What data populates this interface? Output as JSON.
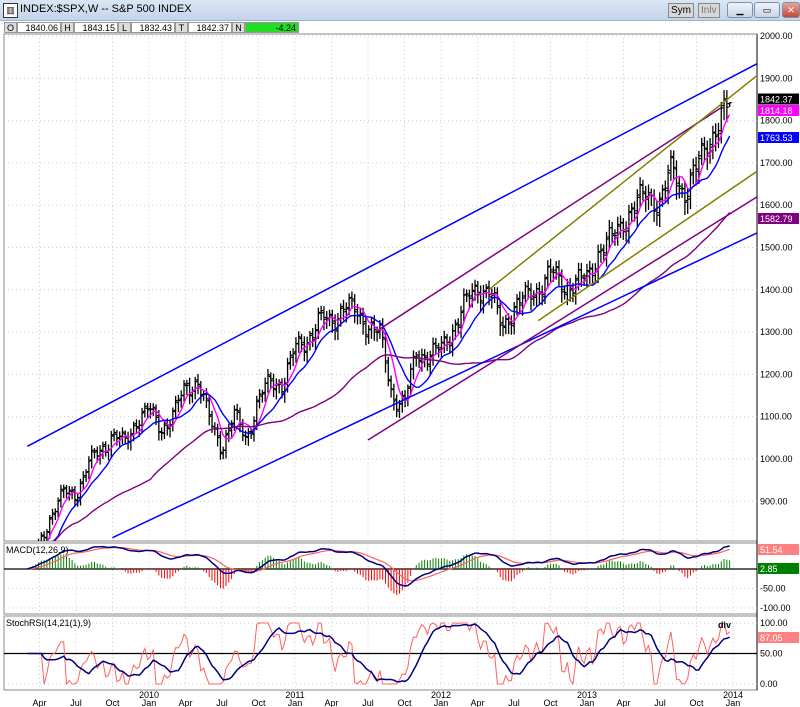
{
  "window": {
    "title": "INDEX:$SPX,W -- S&P 500 INDEX",
    "buttons": {
      "sym": "Sym",
      "inlv": "Inlv",
      "minimize": "minimize-icon",
      "maximize": "maximize-icon",
      "close": "close-icon"
    }
  },
  "ohlc": {
    "o_label": "O",
    "o": "1840.06",
    "h_label": "H",
    "h": "1843.15",
    "l_label": "L",
    "l": "1832.43",
    "t_label": "T",
    "t": "1842.37",
    "n_label": "N",
    "n": "-4.24"
  },
  "chart_data": {
    "type": "ohlc",
    "interval": "weekly",
    "price_axis": {
      "ticks": [
        "2000.00",
        "1900.00",
        "1800.00",
        "1700.00",
        "1600.00",
        "1500.00",
        "1400.00",
        "1300.00",
        "1200.00",
        "1100.00",
        "1000.00",
        "900.00"
      ],
      "range": [
        830,
        2040
      ]
    },
    "x_ticks": [
      {
        "m": "Apr",
        "d": "2009-04"
      },
      {
        "m": "Jul",
        "d": "2009-07"
      },
      {
        "m": "Oct",
        "d": "2009-10"
      },
      {
        "m": "Jan",
        "y": "2010",
        "d": "2010-01"
      },
      {
        "m": "Apr",
        "d": "2010-04"
      },
      {
        "m": "Jul",
        "d": "2010-07"
      },
      {
        "m": "Oct",
        "d": "2010-10"
      },
      {
        "m": "Jan",
        "y": "2011",
        "d": "2011-01"
      },
      {
        "m": "Apr",
        "d": "2011-04"
      },
      {
        "m": "Jul",
        "d": "2011-07"
      },
      {
        "m": "Oct",
        "d": "2011-10"
      },
      {
        "m": "Jan",
        "y": "2012",
        "d": "2012-01"
      },
      {
        "m": "Apr",
        "d": "2012-04"
      },
      {
        "m": "Jul",
        "d": "2012-07"
      },
      {
        "m": "Oct",
        "d": "2012-10"
      },
      {
        "m": "Jan",
        "y": "2013",
        "d": "2013-01"
      },
      {
        "m": "Apr",
        "d": "2013-04"
      },
      {
        "m": "Jul",
        "d": "2013-07"
      },
      {
        "m": "Oct",
        "d": "2013-10"
      },
      {
        "m": "Jan",
        "y": "2014",
        "d": "2014-01"
      }
    ],
    "monthly_close": [
      [
        "2009-02",
        735
      ],
      [
        "2009-03",
        798
      ],
      [
        "2009-04",
        873
      ],
      [
        "2009-05",
        919
      ],
      [
        "2009-06",
        919
      ],
      [
        "2009-07",
        987
      ],
      [
        "2009-08",
        1021
      ],
      [
        "2009-09",
        1057
      ],
      [
        "2009-10",
        1036
      ],
      [
        "2009-11",
        1096
      ],
      [
        "2009-12",
        1115
      ],
      [
        "2010-01",
        1074
      ],
      [
        "2010-02",
        1104
      ],
      [
        "2010-03",
        1169
      ],
      [
        "2010-04",
        1187
      ],
      [
        "2010-05",
        1089
      ],
      [
        "2010-06",
        1031
      ],
      [
        "2010-07",
        1102
      ],
      [
        "2010-08",
        1049
      ],
      [
        "2010-09",
        1141
      ],
      [
        "2010-10",
        1183
      ],
      [
        "2010-11",
        1181
      ],
      [
        "2010-12",
        1258
      ],
      [
        "2011-01",
        1286
      ],
      [
        "2011-02",
        1327
      ],
      [
        "2011-03",
        1326
      ],
      [
        "2011-04",
        1364
      ],
      [
        "2011-05",
        1345
      ],
      [
        "2011-06",
        1321
      ],
      [
        "2011-07",
        1292
      ],
      [
        "2011-08",
        1150
      ],
      [
        "2011-09",
        1131
      ],
      [
        "2011-10",
        1253
      ],
      [
        "2011-11",
        1247
      ],
      [
        "2011-12",
        1258
      ],
      [
        "2012-01",
        1312
      ],
      [
        "2012-02",
        1366
      ],
      [
        "2012-03",
        1408
      ],
      [
        "2012-04",
        1398
      ],
      [
        "2012-05",
        1310
      ],
      [
        "2012-06",
        1362
      ],
      [
        "2012-07",
        1379
      ],
      [
        "2012-08",
        1407
      ],
      [
        "2012-09",
        1441
      ],
      [
        "2012-10",
        1412
      ],
      [
        "2012-11",
        1416
      ],
      [
        "2012-12",
        1426
      ],
      [
        "2013-01",
        1498
      ],
      [
        "2013-02",
        1515
      ],
      [
        "2013-03",
        1569
      ],
      [
        "2013-04",
        1598
      ],
      [
        "2013-05",
        1631
      ],
      [
        "2013-06",
        1606
      ],
      [
        "2013-07",
        1686
      ],
      [
        "2013-08",
        1633
      ],
      [
        "2013-09",
        1682
      ],
      [
        "2013-10",
        1757
      ],
      [
        "2013-11",
        1806
      ],
      [
        "2013-12",
        1842.37
      ]
    ],
    "last_bar": {
      "open": 1840.06,
      "high": 1843.15,
      "low": 1832.43,
      "close": 1842.37
    },
    "moving_averages": [
      {
        "color": "#ff00ff",
        "last": "1814.18"
      },
      {
        "color": "#0000ff",
        "last": "1763.53"
      },
      {
        "color": "#800080",
        "last": "1582.79"
      }
    ],
    "last_price_label": "1842.37",
    "trendlines": [
      {
        "color": "#0000ff",
        "from": [
          "2009-03",
          1030
        ],
        "to": [
          "2014-05",
          1965
        ]
      },
      {
        "color": "#0000ff",
        "from": [
          "2009-10",
          814
        ],
        "to": [
          "2014-05",
          1562
        ]
      },
      {
        "color": "#800080",
        "from": [
          "2011-08",
          1308
        ],
        "to": [
          "2013-12",
          1830
        ]
      },
      {
        "color": "#800080",
        "from": [
          "2011-07",
          1045
        ],
        "to": [
          "2014-05",
          1656
        ]
      },
      {
        "color": "#808000",
        "from": [
          "2012-05",
          1402
        ],
        "to": [
          "2014-05",
          1953
        ]
      },
      {
        "color": "#808000",
        "from": [
          "2012-09",
          1327
        ],
        "to": [
          "2014-05",
          1720
        ]
      }
    ],
    "macd": {
      "label": "MACD(12,26,9)",
      "ticks": [
        "-50.00",
        "-100.00"
      ],
      "macd_last": "51.54",
      "hist_last": "2.85",
      "colors": {
        "macd": "#000080",
        "signal": "#ff6060",
        "hist_pos": "#008000",
        "hist_neg": "#ff0000"
      }
    },
    "stochrsi": {
      "label": "StochRSI(14,21(1),9)",
      "ticks": [
        "100.00",
        "50.00",
        "0.00"
      ],
      "last": "87.05",
      "annotation": "div",
      "colors": {
        "fast": "#ff6060",
        "slow": "#000080"
      }
    }
  }
}
